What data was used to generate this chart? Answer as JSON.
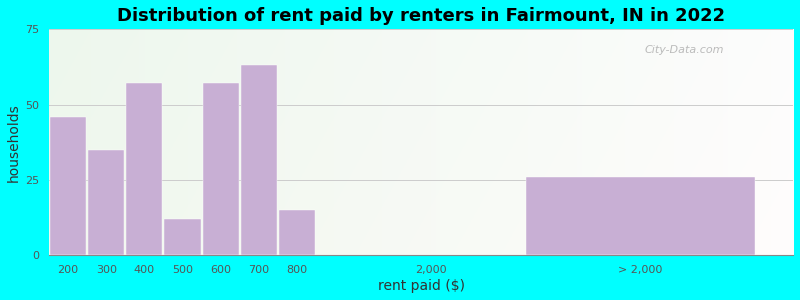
{
  "title": "Distribution of rent paid by renters in Fairmount, IN in 2022",
  "xlabel": "rent paid ($)",
  "ylabel": "households",
  "bar_color": "#c8afd4",
  "background_color": "#00ffff",
  "ylim": [
    0,
    75
  ],
  "yticks": [
    0,
    25,
    50,
    75
  ],
  "values": [
    46,
    35,
    57,
    12,
    57,
    63,
    15,
    26
  ],
  "xtick_labels": [
    "200",
    "300",
    "400",
    "500",
    "600",
    "700",
    "800",
    "2,000",
    "> 2,000"
  ],
  "title_fontsize": 13,
  "axis_label_fontsize": 10,
  "tick_fontsize": 8,
  "tick_color": "#555555",
  "grid_color": "#cccccc",
  "watermark": "City-Data.com"
}
